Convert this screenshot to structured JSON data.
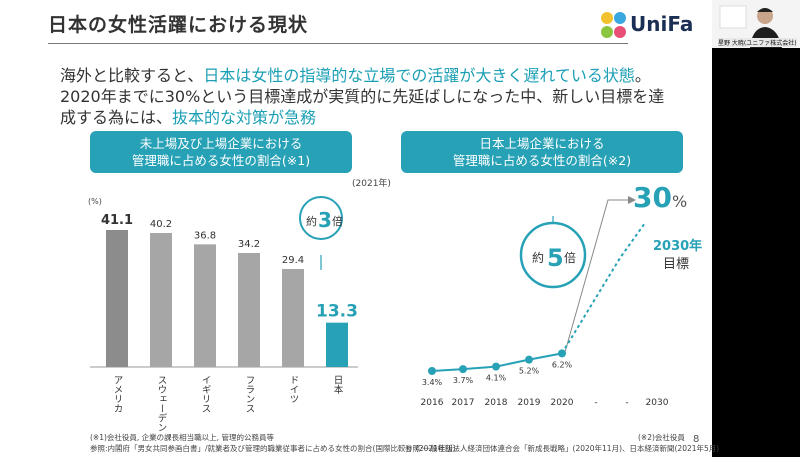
{
  "slide": {
    "title": "日本の女性活躍における現状",
    "logo_text": "UniFa",
    "page_number": "8"
  },
  "intro": {
    "line1_a": "海外と比較すると、",
    "line1_b": "日本は女性の指導的な立場での活躍が大きく遅れている状態",
    "line1_c": "。",
    "line2": "2020年までに30%という目標達成が実質的に先延ばしになった中、新しい目標を達",
    "line3_a": "成する為には、",
    "line3_b": "抜本的な対策が急務"
  },
  "left_panel": {
    "header_line1": "未上場及び上場企業における",
    "header_line2": "管理職に占める女性の割合(※1)",
    "year_note": "(2021年)",
    "unit": "(%)",
    "badge_pre": "約",
    "badge_num": "3",
    "badge_post": "倍",
    "footnote1": "(※1)会社役員, 企業の課長相当職以上, 管理的公務員等",
    "footnote2": "参照:内閣府「男女共同参画白書」/就業者及び管理的職業従事者に占める女性の割合(国際比較)」(2021年版)"
  },
  "right_panel": {
    "header_line1": "日本上場企業における",
    "header_line2": "管理職に占める女性の割合(※2)",
    "badge_pre": "約",
    "badge_num": "5",
    "badge_post": "倍",
    "target_value": "30",
    "target_unit": "%",
    "target_label_1": "2030年",
    "target_label_2": "目標",
    "footnote1": "(※2)会社役員",
    "footnote2": "参照:一般社団法人経済団体連合会「新成長戦略」(2020年11月)、日本経済新聞(2021年5月)"
  },
  "camera": {
    "name_tag": "星野 大暁(ユニファ株式会社)"
  },
  "colors": {
    "accent": "#27a1b6",
    "bar_gray": "#a6a6a6",
    "bar_gray_dark": "#8c8c8c",
    "text_dark": "#333333"
  },
  "chart_data": [
    {
      "type": "bar",
      "categories": [
        "アメリカ",
        "スウェーデン",
        "イギリス",
        "フランス",
        "ドイツ",
        "日本"
      ],
      "values": [
        41.1,
        40.2,
        36.8,
        34.2,
        29.4,
        13.3
      ],
      "ylim": [
        0,
        45
      ]
    },
    {
      "type": "line",
      "x": [
        "2016",
        "2017",
        "2018",
        "2019",
        "2020",
        "-",
        "-",
        "2030"
      ],
      "values": [
        3.4,
        3.7,
        4.1,
        5.2,
        6.2,
        null,
        null,
        30
      ],
      "labels": [
        "3.4%",
        "3.7%",
        "4.1%",
        "5.2%",
        "6.2%"
      ],
      "ylim": [
        0,
        30
      ]
    }
  ]
}
